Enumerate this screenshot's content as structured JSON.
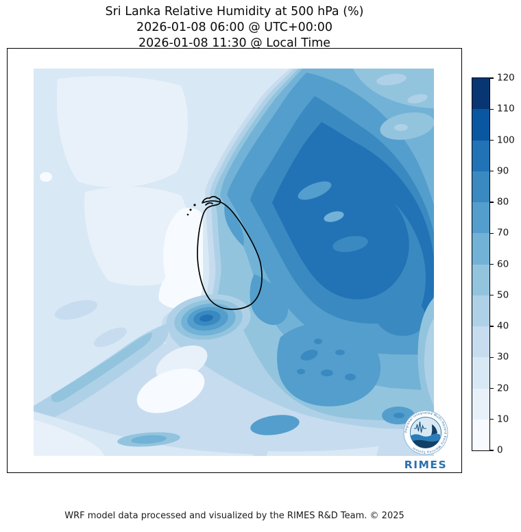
{
  "title": {
    "line1": "Sri Lanka Relative Humidity at 500 hPa (%)",
    "line2": "2026-01-08 06:00 @ UTC+00:00",
    "line3": "2026-01-08 11:30 @ Local Time"
  },
  "footer": {
    "credit": "WRF model data processed and visualized by the RIMES R&D Team. © 2025"
  },
  "colorbar": {
    "ticks": [
      "0",
      "10",
      "20",
      "30",
      "40",
      "50",
      "60",
      "70",
      "80",
      "90",
      "100",
      "110",
      "120"
    ],
    "colors": [
      "#f7fbff",
      "#e8f1fa",
      "#d9e8f5",
      "#c7dcef",
      "#afd1e7",
      "#93c4de",
      "#72b2d6",
      "#539ecc",
      "#3a8ac1",
      "#2272b6",
      "#0a57a1",
      "#083672"
    ],
    "units": "%"
  },
  "map": {
    "region_label": "Sri Lanka",
    "outline_color": "#000000"
  },
  "logo": {
    "wordmark": "RIMES",
    "ring_text": "Regional Integrated Multi-Hazard Early Warning System"
  },
  "chart_data": {
    "type": "heatmap",
    "title": "Sri Lanka Relative Humidity at 500 hPa (%)",
    "valid_time_utc": "2026-01-08 06:00 @ UTC+00:00",
    "valid_time_local": "2026-01-08 11:30 @ Local Time",
    "units": "%",
    "colormap": "Blues",
    "legend_position": "right",
    "contour_levels": [
      0,
      10,
      20,
      30,
      40,
      50,
      60,
      70,
      80,
      90,
      100,
      110,
      120
    ],
    "observed_value_range": [
      0,
      100
    ],
    "regions": [
      {
        "area": "northwest quadrant (southeast India / Gulf of Mannar)",
        "rh_percent": "10-30"
      },
      {
        "area": "narrow band immediately west of Sri Lanka",
        "rh_percent": "0-10"
      },
      {
        "area": "northeast and east of Sri Lanka (Bay of Bengal)",
        "rh_percent": "80-100"
      },
      {
        "area": "compact maximum southwest of the island",
        "rh_percent": "80-100"
      },
      {
        "area": "southeast quadrant offshore",
        "rh_percent": "60-80"
      },
      {
        "area": "southern map edge",
        "rh_percent": "20-50"
      },
      {
        "area": "over the island: dry west coast, moist east coast",
        "rh_percent": "10-70"
      }
    ]
  }
}
